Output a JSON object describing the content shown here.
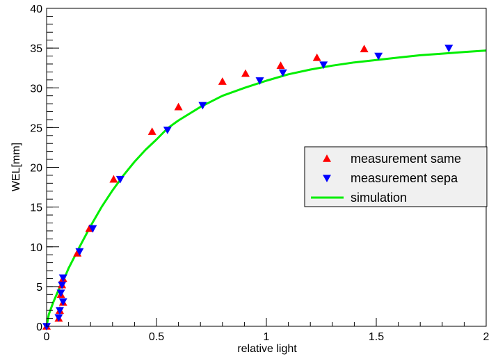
{
  "chart_data": {
    "type": "scatter",
    "xlabel": "relative light",
    "ylabel": "WEL[mm]",
    "xlim": [
      0,
      2
    ],
    "ylim": [
      0,
      40
    ],
    "x_ticks": [
      "0",
      "0.5",
      "1",
      "1.5",
      "2"
    ],
    "y_ticks": [
      "0",
      "5",
      "10",
      "15",
      "20",
      "25",
      "30",
      "35",
      "40"
    ],
    "grid": false,
    "legend_position": "right",
    "series": [
      {
        "name": "measurement same",
        "marker": "triangle-up",
        "color": "#ff0000",
        "points": [
          {
            "x": 0.0,
            "y": 0.0
          },
          {
            "x": 0.055,
            "y": 1.0
          },
          {
            "x": 0.06,
            "y": 2.0
          },
          {
            "x": 0.065,
            "y": 4.0
          },
          {
            "x": 0.07,
            "y": 5.2
          },
          {
            "x": 0.075,
            "y": 6.0
          },
          {
            "x": 0.075,
            "y": 3.0
          },
          {
            "x": 0.14,
            "y": 9.2
          },
          {
            "x": 0.195,
            "y": 12.3
          },
          {
            "x": 0.305,
            "y": 18.5
          },
          {
            "x": 0.48,
            "y": 24.5
          },
          {
            "x": 0.6,
            "y": 27.6
          },
          {
            "x": 0.8,
            "y": 30.8
          },
          {
            "x": 0.905,
            "y": 31.8
          },
          {
            "x": 1.065,
            "y": 32.8
          },
          {
            "x": 1.23,
            "y": 33.8
          },
          {
            "x": 1.445,
            "y": 34.9
          }
        ]
      },
      {
        "name": "measurement sepa",
        "marker": "triangle-down",
        "color": "#0000ff",
        "points": [
          {
            "x": 0.0,
            "y": 0.0
          },
          {
            "x": 0.055,
            "y": 1.1
          },
          {
            "x": 0.06,
            "y": 2.0
          },
          {
            "x": 0.065,
            "y": 4.2
          },
          {
            "x": 0.07,
            "y": 5.2
          },
          {
            "x": 0.075,
            "y": 6.1
          },
          {
            "x": 0.075,
            "y": 3.1
          },
          {
            "x": 0.15,
            "y": 9.4
          },
          {
            "x": 0.21,
            "y": 12.3
          },
          {
            "x": 0.335,
            "y": 18.5
          },
          {
            "x": 0.55,
            "y": 24.7
          },
          {
            "x": 0.71,
            "y": 27.8
          },
          {
            "x": 0.97,
            "y": 30.9
          },
          {
            "x": 1.075,
            "y": 31.9
          },
          {
            "x": 1.26,
            "y": 32.9
          },
          {
            "x": 1.51,
            "y": 34.0
          },
          {
            "x": 1.83,
            "y": 35.0
          }
        ]
      },
      {
        "name": "simulation",
        "marker": "line",
        "color": "#00ee00",
        "points": [
          {
            "x": 0.0,
            "y": 0.0
          },
          {
            "x": 0.01,
            "y": 1.5
          },
          {
            "x": 0.03,
            "y": 3.0
          },
          {
            "x": 0.05,
            "y": 4.3
          },
          {
            "x": 0.08,
            "y": 6.0
          },
          {
            "x": 0.1,
            "y": 7.3
          },
          {
            "x": 0.15,
            "y": 10.0
          },
          {
            "x": 0.2,
            "y": 12.6
          },
          {
            "x": 0.25,
            "y": 15.0
          },
          {
            "x": 0.3,
            "y": 17.1
          },
          {
            "x": 0.35,
            "y": 19.0
          },
          {
            "x": 0.4,
            "y": 20.7
          },
          {
            "x": 0.45,
            "y": 22.2
          },
          {
            "x": 0.5,
            "y": 23.5
          },
          {
            "x": 0.55,
            "y": 24.9
          },
          {
            "x": 0.6,
            "y": 25.9
          },
          {
            "x": 0.7,
            "y": 27.6
          },
          {
            "x": 0.8,
            "y": 29.0
          },
          {
            "x": 0.9,
            "y": 30.0
          },
          {
            "x": 1.0,
            "y": 30.9
          },
          {
            "x": 1.1,
            "y": 31.7
          },
          {
            "x": 1.2,
            "y": 32.3
          },
          {
            "x": 1.3,
            "y": 32.8
          },
          {
            "x": 1.4,
            "y": 33.2
          },
          {
            "x": 1.5,
            "y": 33.5
          },
          {
            "x": 1.6,
            "y": 33.8
          },
          {
            "x": 1.7,
            "y": 34.1
          },
          {
            "x": 1.8,
            "y": 34.3
          },
          {
            "x": 1.9,
            "y": 34.5
          },
          {
            "x": 2.0,
            "y": 34.7
          }
        ]
      }
    ]
  }
}
